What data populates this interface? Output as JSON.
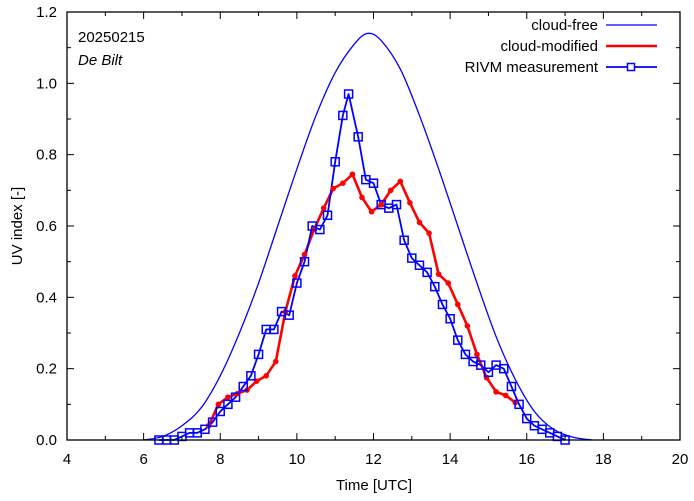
{
  "chart_data": {
    "type": "line",
    "title": "",
    "annotations": {
      "date": "20250215",
      "location": "De Bilt"
    },
    "xlabel": "Time  [UTC]",
    "ylabel": "UV index  [-]",
    "xlim": [
      4,
      20
    ],
    "ylim": [
      0,
      1.2
    ],
    "xticks": [
      4,
      6,
      8,
      10,
      12,
      14,
      16,
      18,
      20
    ],
    "xtick_labels": [
      "4",
      "6",
      "8",
      "10",
      "12",
      "14",
      "16",
      "18",
      "20"
    ],
    "yticks": [
      0.0,
      0.2,
      0.4,
      0.6,
      0.8,
      1.0,
      1.2
    ],
    "ytick_labels": [
      "0.0",
      "0.2",
      "0.4",
      "0.6",
      "0.8",
      "1.0",
      "1.2"
    ],
    "grid": false,
    "legend_position": "top-right",
    "series": [
      {
        "name": "cloud-free",
        "color": "#0000ff",
        "style": "thin-line",
        "x": [
          6.0,
          6.5,
          7.0,
          7.5,
          8.0,
          8.5,
          9.0,
          9.5,
          10.0,
          10.5,
          11.0,
          11.5,
          11.85,
          12.2,
          12.7,
          13.2,
          13.7,
          14.2,
          14.7,
          15.2,
          15.7,
          16.2,
          16.7,
          17.2,
          17.7
        ],
        "y": [
          0.0,
          0.01,
          0.04,
          0.09,
          0.18,
          0.3,
          0.44,
          0.6,
          0.76,
          0.91,
          1.03,
          1.11,
          1.14,
          1.12,
          1.04,
          0.91,
          0.76,
          0.6,
          0.44,
          0.29,
          0.17,
          0.08,
          0.03,
          0.008,
          0.0
        ]
      },
      {
        "name": "cloud-modified",
        "color": "#ff0000",
        "style": "thick-line-dots",
        "x": [
          7.7,
          7.95,
          8.2,
          8.45,
          8.7,
          8.95,
          9.2,
          9.45,
          9.7,
          9.95,
          10.2,
          10.45,
          10.7,
          10.95,
          11.2,
          11.45,
          11.7,
          11.95,
          12.2,
          12.45,
          12.7,
          12.95,
          13.2,
          13.45,
          13.7,
          13.95,
          14.2,
          14.45,
          14.7,
          14.95,
          15.2,
          15.45,
          15.7
        ],
        "y": [
          0.04,
          0.1,
          0.12,
          0.13,
          0.14,
          0.165,
          0.18,
          0.22,
          0.36,
          0.46,
          0.52,
          0.59,
          0.65,
          0.705,
          0.72,
          0.745,
          0.68,
          0.64,
          0.66,
          0.7,
          0.725,
          0.665,
          0.61,
          0.58,
          0.465,
          0.44,
          0.38,
          0.32,
          0.24,
          0.175,
          0.135,
          0.125,
          0.105
        ]
      },
      {
        "name": "RIVM measurement",
        "color": "#0000ff",
        "style": "line-open-squares",
        "x": [
          6.4,
          6.6,
          6.8,
          7.0,
          7.2,
          7.4,
          7.6,
          7.8,
          8.0,
          8.2,
          8.4,
          8.6,
          8.8,
          9.0,
          9.2,
          9.4,
          9.6,
          9.8,
          10.0,
          10.2,
          10.4,
          10.6,
          10.8,
          11.0,
          11.2,
          11.35,
          11.6,
          11.8,
          12.0,
          12.2,
          12.4,
          12.6,
          12.8,
          13.0,
          13.2,
          13.4,
          13.6,
          13.8,
          14.0,
          14.2,
          14.4,
          14.6,
          14.8,
          15.0,
          15.2,
          15.4,
          15.6,
          15.8,
          16.0,
          16.2,
          16.4,
          16.6,
          16.8,
          17.0
        ],
        "y": [
          0.0,
          0.0,
          0.0,
          0.01,
          0.02,
          0.02,
          0.03,
          0.05,
          0.08,
          0.1,
          0.12,
          0.15,
          0.18,
          0.24,
          0.31,
          0.31,
          0.36,
          0.35,
          0.44,
          0.5,
          0.6,
          0.59,
          0.63,
          0.78,
          0.91,
          0.97,
          0.85,
          0.73,
          0.72,
          0.66,
          0.65,
          0.66,
          0.56,
          0.51,
          0.49,
          0.47,
          0.43,
          0.38,
          0.34,
          0.28,
          0.24,
          0.22,
          0.21,
          0.19,
          0.21,
          0.2,
          0.15,
          0.1,
          0.06,
          0.04,
          0.03,
          0.02,
          0.01,
          0.0
        ]
      }
    ]
  }
}
